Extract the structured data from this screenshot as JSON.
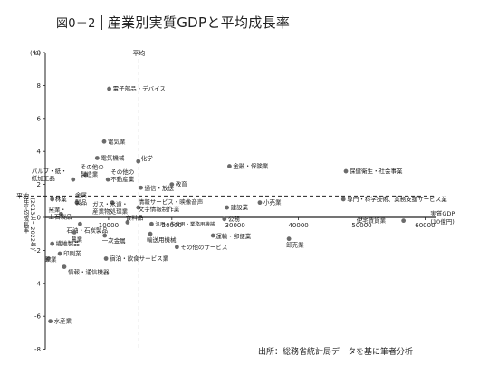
{
  "title": {
    "figure_number": "図0－2",
    "text": "産業別実質GDPと平均成長率"
  },
  "source_note": "出所：総務省統計局データを基に筆者分析",
  "chart_data": {
    "type": "scatter",
    "xlabel": "実質GDP\n(10億円)",
    "ylabel": "年平均成長率\n(2013年～2022年)",
    "y_unit": "(%)",
    "xlim": [
      0,
      60000
    ],
    "ylim": [
      -8,
      10
    ],
    "x_ticks": [
      10000,
      20000,
      30000,
      40000,
      50000,
      60000
    ],
    "x_tick_labels": [
      "10000",
      "20000",
      "30000",
      "40000",
      "50000",
      "60000"
    ],
    "y_ticks": [
      -8,
      -6,
      -4,
      -2,
      0,
      2,
      4,
      6,
      8,
      10
    ],
    "y_tick_labels": [
      "-8",
      "-6",
      "-4",
      "-2",
      "0",
      "2",
      "4",
      "6",
      "8",
      "10"
    ],
    "avg_x_label": "平均",
    "avg_y_label": "平均",
    "avg_x": 14800,
    "avg_y": 1.3,
    "points": [
      {
        "label": "電子部品・デバイス",
        "x": 10100,
        "y": 7.8
      },
      {
        "label": "電気業",
        "x": 9300,
        "y": 4.6
      },
      {
        "label": "電気機械",
        "x": 8200,
        "y": 3.6
      },
      {
        "label": "化学",
        "x": 14700,
        "y": 3.4
      },
      {
        "label": "その他の製造業",
        "x": 6400,
        "y": 2.6
      },
      {
        "label": "パルプ・紙・紙加工品",
        "x": 4400,
        "y": 2.3
      },
      {
        "label": "その他の不動産業",
        "x": 9900,
        "y": 2.3
      },
      {
        "label": "通信・放送",
        "x": 15100,
        "y": 1.8
      },
      {
        "label": "教育",
        "x": 20000,
        "y": 2.0
      },
      {
        "label": "金融・保険業",
        "x": 29100,
        "y": 3.1
      },
      {
        "label": "保健衛生・社会事業",
        "x": 47500,
        "y": 2.8
      },
      {
        "label": "林業",
        "x": 1100,
        "y": 1.1
      },
      {
        "label": "金属製品",
        "x": 5000,
        "y": 0.9
      },
      {
        "label": "ガス・水道・産業物処理業",
        "x": 10600,
        "y": 0.9
      },
      {
        "label": "情報サービス・映像音声文字情報制作業",
        "x": 14700,
        "y": 0.6
      },
      {
        "label": "建設業",
        "x": 28700,
        "y": 0.6
      },
      {
        "label": "小売業",
        "x": 33900,
        "y": 0.9
      },
      {
        "label": "専門・科学技術、業務支援サービス業",
        "x": 47100,
        "y": 1.1
      },
      {
        "label": "窯業・土石製品",
        "x": 2500,
        "y": 0.2
      },
      {
        "label": "公務",
        "x": 28300,
        "y": -0.1
      },
      {
        "label": "石油・石炭製品",
        "x": 5500,
        "y": -0.4
      },
      {
        "label": "食料品",
        "x": 13000,
        "y": -0.3
      },
      {
        "label": "汎用・生産用・業務用機械",
        "x": 16800,
        "y": -0.4
      },
      {
        "label": "住宅賃貸業",
        "x": 56600,
        "y": -0.2
      },
      {
        "label": "農業",
        "x": 4600,
        "y": -0.9
      },
      {
        "label": "一次金属",
        "x": 9400,
        "y": -1.1
      },
      {
        "label": "輸送用機械",
        "x": 16600,
        "y": -1.0
      },
      {
        "label": "運輸・郵便業",
        "x": 26500,
        "y": -1.1
      },
      {
        "label": "卸売業",
        "x": 38500,
        "y": -1.3
      },
      {
        "label": "繊維製品",
        "x": 1100,
        "y": -1.6
      },
      {
        "label": "その他のサービス",
        "x": 20800,
        "y": -1.8
      },
      {
        "label": "印刷業",
        "x": 2300,
        "y": -2.2
      },
      {
        "label": "鉱業",
        "x": 500,
        "y": -2.5
      },
      {
        "label": "宿泊・飲食サービス業",
        "x": 9600,
        "y": -2.5
      },
      {
        "label": "情報・通信機器",
        "x": 3000,
        "y": -3.0
      },
      {
        "label": "水産業",
        "x": 800,
        "y": -6.3
      }
    ]
  }
}
